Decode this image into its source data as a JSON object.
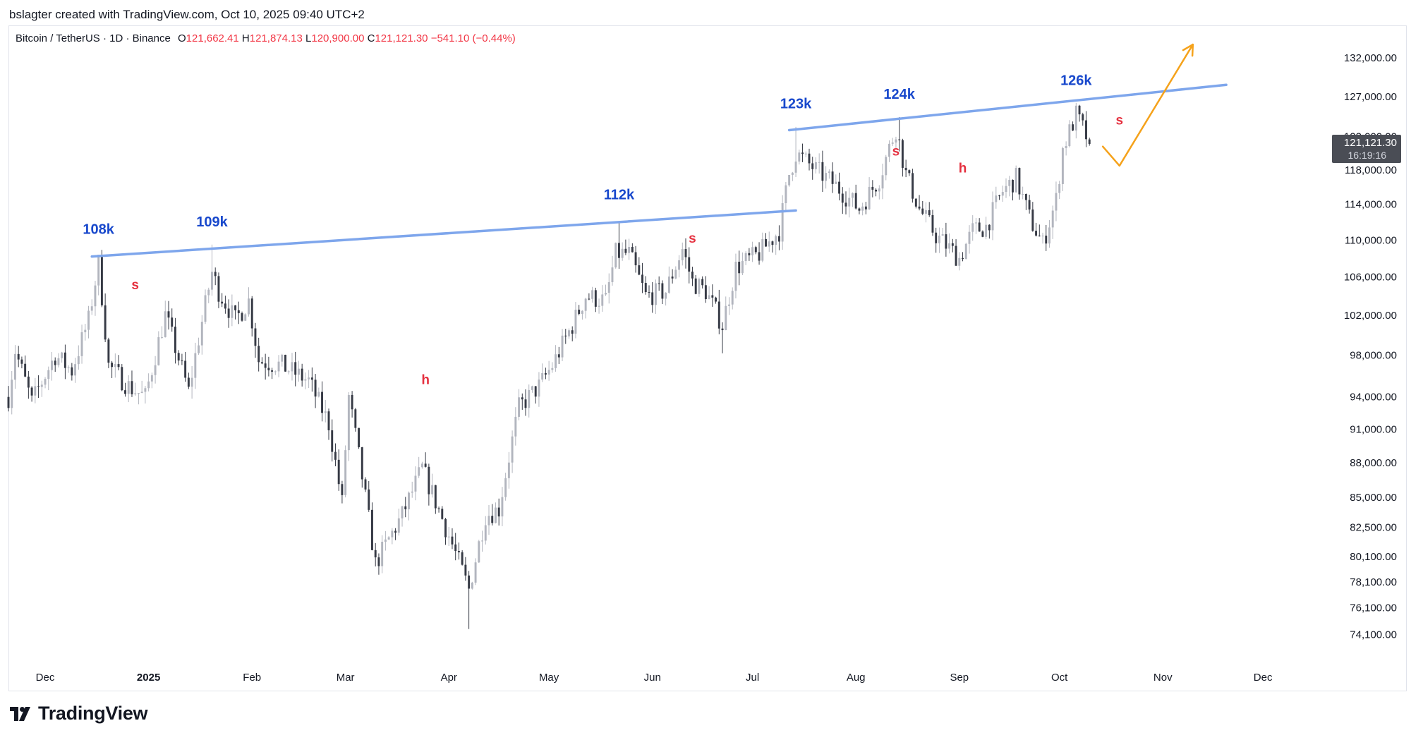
{
  "header": {
    "created_by": "bslagter created with TradingView.com, Oct 10, 2025 09:40 UTC+2"
  },
  "legend": {
    "symbol": "Bitcoin / TetherUS · 1D · Binance",
    "o_label": "O",
    "o_value": "121,662.41",
    "h_label": "H",
    "h_value": "121,874.13",
    "l_label": "L",
    "l_value": "120,900.00",
    "c_label": "C",
    "c_value": "121,121.30",
    "change": "−541.10 (−0.44%)"
  },
  "price_tag": {
    "price": "121,121.30",
    "countdown": "16:19:16"
  },
  "footer": {
    "brand": "TradingView"
  },
  "colors": {
    "candle_up": "#b2b5be",
    "candle_down": "#363a45",
    "trendline": "#7ea6ec",
    "projection": "#f5a21b",
    "peak_label": "#1848cc",
    "sh_label": "#e5303f",
    "price_tag_bg": "#4a4d55"
  },
  "chart_data": {
    "type": "candlestick",
    "title": "Bitcoin / TetherUS · 1D · Binance",
    "scale": "log",
    "x_range": [
      "2024-11-20",
      "2025-12-20"
    ],
    "y_range": [
      72000,
      136000
    ],
    "x_ticks": [
      {
        "date": "2024-12-01",
        "label": "Dec"
      },
      {
        "date": "2025-01-01",
        "label": "2025"
      },
      {
        "date": "2025-02-01",
        "label": "Feb"
      },
      {
        "date": "2025-03-01",
        "label": "Mar"
      },
      {
        "date": "2025-04-01",
        "label": "Apr"
      },
      {
        "date": "2025-05-01",
        "label": "May"
      },
      {
        "date": "2025-06-01",
        "label": "Jun"
      },
      {
        "date": "2025-07-01",
        "label": "Jul"
      },
      {
        "date": "2025-08-01",
        "label": "Aug"
      },
      {
        "date": "2025-09-01",
        "label": "Sep"
      },
      {
        "date": "2025-10-01",
        "label": "Oct"
      },
      {
        "date": "2025-11-01",
        "label": "Nov"
      },
      {
        "date": "2025-12-01",
        "label": "Dec"
      }
    ],
    "y_ticks": [
      {
        "value": 132000,
        "label": "132,000.00"
      },
      {
        "value": 127000,
        "label": "127,000.00"
      },
      {
        "value": 122000,
        "label": "122,000.00"
      },
      {
        "value": 118000,
        "label": "118,000.00"
      },
      {
        "value": 114000,
        "label": "114,000.00"
      },
      {
        "value": 110000,
        "label": "110,000.00"
      },
      {
        "value": 106000,
        "label": "106,000.00"
      },
      {
        "value": 102000,
        "label": "102,000.00"
      },
      {
        "value": 98000,
        "label": "98,000.00"
      },
      {
        "value": 94000,
        "label": "94,000.00"
      },
      {
        "value": 91000,
        "label": "91,000.00"
      },
      {
        "value": 88000,
        "label": "88,000.00"
      },
      {
        "value": 85000,
        "label": "85,000.00"
      },
      {
        "value": 82500,
        "label": "82,500.00"
      },
      {
        "value": 80100,
        "label": "80,100.00"
      },
      {
        "value": 78100,
        "label": "78,100.00"
      },
      {
        "value": 76100,
        "label": "76,100.00"
      },
      {
        "value": 74100,
        "label": "74,100.00"
      }
    ],
    "price_path": [
      [
        "2024-11-20",
        94000
      ],
      [
        "2024-11-22",
        98500
      ],
      [
        "2024-11-27",
        93500
      ],
      [
        "2024-12-04",
        98000
      ],
      [
        "2024-12-09",
        96500
      ],
      [
        "2024-12-14",
        101500
      ],
      [
        "2024-12-17",
        107500
      ],
      [
        "2024-12-20",
        97000
      ],
      [
        "2024-12-26",
        95000
      ],
      [
        "2024-12-31",
        94000
      ],
      [
        "2025-01-06",
        102000
      ],
      [
        "2025-01-13",
        94500
      ],
      [
        "2025-01-20",
        106500
      ],
      [
        "2025-01-22",
        104500
      ],
      [
        "2025-01-27",
        101500
      ],
      [
        "2025-01-31",
        103500
      ],
      [
        "2025-02-03",
        97500
      ],
      [
        "2025-02-10",
        97000
      ],
      [
        "2025-02-18",
        95500
      ],
      [
        "2025-02-24",
        91500
      ],
      [
        "2025-02-28",
        84500
      ],
      [
        "2025-03-02",
        94000
      ],
      [
        "2025-03-10",
        79500
      ],
      [
        "2025-03-18",
        83500
      ],
      [
        "2025-03-24",
        87500
      ],
      [
        "2025-03-31",
        82500
      ],
      [
        "2025-04-07",
        77500
      ],
      [
        "2025-04-12",
        83500
      ],
      [
        "2025-04-16",
        84000
      ],
      [
        "2025-04-22",
        93000
      ],
      [
        "2025-04-28",
        95000
      ],
      [
        "2025-05-02",
        97000
      ],
      [
        "2025-05-08",
        101000
      ],
      [
        "2025-05-12",
        104000
      ],
      [
        "2025-05-18",
        103500
      ],
      [
        "2025-05-21",
        108500
      ],
      [
        "2025-05-25",
        108500
      ],
      [
        "2025-05-30",
        104000
      ],
      [
        "2025-06-05",
        104500
      ],
      [
        "2025-06-10",
        109000
      ],
      [
        "2025-06-13",
        105500
      ],
      [
        "2025-06-17",
        104500
      ],
      [
        "2025-06-22",
        101000
      ],
      [
        "2025-06-26",
        107000
      ],
      [
        "2025-07-03",
        108500
      ],
      [
        "2025-07-09",
        111000
      ],
      [
        "2025-07-12",
        117500
      ],
      [
        "2025-07-14",
        120000
      ],
      [
        "2025-07-20",
        118000
      ],
      [
        "2025-07-25",
        116500
      ],
      [
        "2025-08-02",
        113500
      ],
      [
        "2025-08-08",
        117000
      ],
      [
        "2025-08-13",
        123000
      ],
      [
        "2025-08-16",
        117500
      ],
      [
        "2025-08-20",
        113500
      ],
      [
        "2025-08-25",
        110500
      ],
      [
        "2025-09-01",
        108000
      ],
      [
        "2025-09-05",
        111000
      ],
      [
        "2025-09-09",
        111500
      ],
      [
        "2025-09-14",
        115500
      ],
      [
        "2025-09-18",
        117000
      ],
      [
        "2025-09-22",
        112500
      ],
      [
        "2025-09-26",
        109500
      ],
      [
        "2025-09-30",
        114500
      ],
      [
        "2025-10-02",
        120500
      ],
      [
        "2025-10-06",
        124700
      ],
      [
        "2025-10-08",
        123000
      ],
      [
        "2025-10-10",
        121121
      ]
    ],
    "wicks": [
      {
        "date": "2024-12-17",
        "high": 108300
      },
      {
        "date": "2025-01-20",
        "high": 109500
      },
      {
        "date": "2025-04-07",
        "low": 74500
      },
      {
        "date": "2025-05-22",
        "high": 111900
      },
      {
        "date": "2025-06-22",
        "low": 98200
      },
      {
        "date": "2025-07-14",
        "high": 123200
      },
      {
        "date": "2025-08-14",
        "high": 124400
      },
      {
        "date": "2025-10-06",
        "high": 126200
      }
    ],
    "trendlines": [
      {
        "name": "resistance-1",
        "points": [
          [
            "2024-12-15",
            108200
          ],
          [
            "2025-07-14",
            113300
          ]
        ]
      },
      {
        "name": "resistance-2",
        "points": [
          [
            "2025-07-12",
            122800
          ],
          [
            "2025-11-20",
            128500
          ]
        ]
      }
    ],
    "projection": [
      [
        "2025-10-14",
        120800
      ],
      [
        "2025-10-19",
        118500
      ],
      [
        "2025-11-10",
        133800
      ]
    ],
    "annotations": [
      {
        "text": "108k",
        "date": "2024-12-17",
        "price": 110700,
        "kind": "peak"
      },
      {
        "text": "109k",
        "date": "2025-01-20",
        "price": 111500,
        "kind": "peak"
      },
      {
        "text": "112k",
        "date": "2025-05-22",
        "price": 114600,
        "kind": "peak"
      },
      {
        "text": "123k",
        "date": "2025-07-14",
        "price": 125500,
        "kind": "peak"
      },
      {
        "text": "124k",
        "date": "2025-08-14",
        "price": 126700,
        "kind": "peak"
      },
      {
        "text": "126k",
        "date": "2025-10-06",
        "price": 128500,
        "kind": "peak"
      },
      {
        "text": "s",
        "date": "2024-12-28",
        "price": 104700,
        "kind": "sh"
      },
      {
        "text": "h",
        "date": "2025-03-25",
        "price": 95200,
        "kind": "sh"
      },
      {
        "text": "s",
        "date": "2025-06-13",
        "price": 109700,
        "kind": "sh"
      },
      {
        "text": "s",
        "date": "2025-08-13",
        "price": 119700,
        "kind": "sh"
      },
      {
        "text": "h",
        "date": "2025-09-02",
        "price": 117700,
        "kind": "sh"
      },
      {
        "text": "s",
        "date": "2025-10-19",
        "price": 123500,
        "kind": "sh"
      }
    ],
    "last_price": 121121.3
  }
}
